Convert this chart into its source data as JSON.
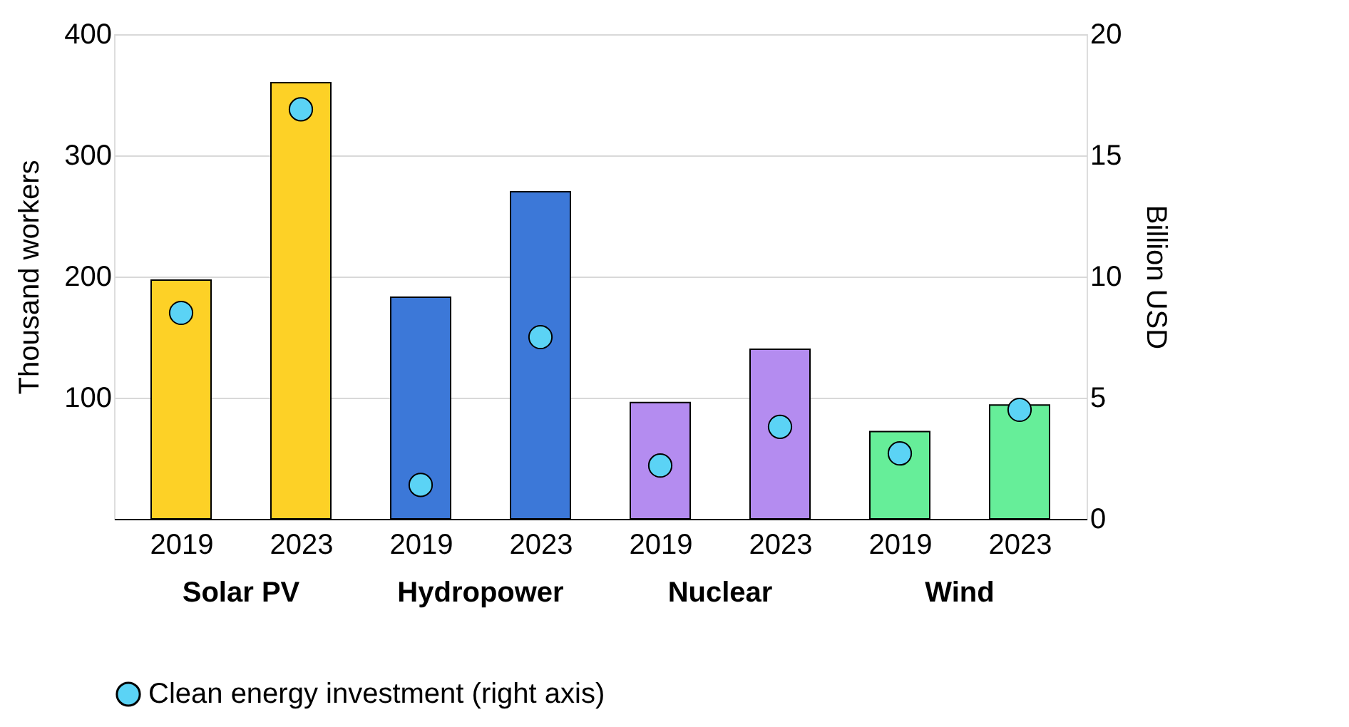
{
  "chart_data": {
    "type": "bar",
    "categories": [
      "2019",
      "2023",
      "2019",
      "2023",
      "2019",
      "2023",
      "2019",
      "2023"
    ],
    "annotations": [
      "Solar PV",
      "Hydropower",
      "Nuclear",
      "Wind"
    ],
    "ylabel": "Thousand workers",
    "y2label": "Billion USD",
    "ylim": [
      0,
      400
    ],
    "yticks": [
      100,
      200,
      300,
      400
    ],
    "y2lim": [
      0,
      20
    ],
    "y2ticks": [
      0,
      5,
      10,
      15,
      20
    ],
    "grid": "y",
    "legend": "bottom",
    "series": [
      {
        "colors": [
          "#fdd126",
          "#fdd126",
          "#3c78d8",
          "#3c78d8",
          "#b48cf0",
          "#b48cf0",
          "#66ee99",
          "#66ee99"
        ],
        "values": [
          197,
          360,
          183,
          270,
          96,
          140,
          72,
          94
        ]
      },
      {
        "type": "scatter",
        "name": "Clean energy investment (right axis)",
        "color": "#5bd3f5",
        "axis": "y2",
        "marker": "circle",
        "values": [
          8.5,
          16.9,
          1.4,
          7.5,
          2.2,
          3.8,
          2.7,
          4.5
        ]
      }
    ]
  }
}
